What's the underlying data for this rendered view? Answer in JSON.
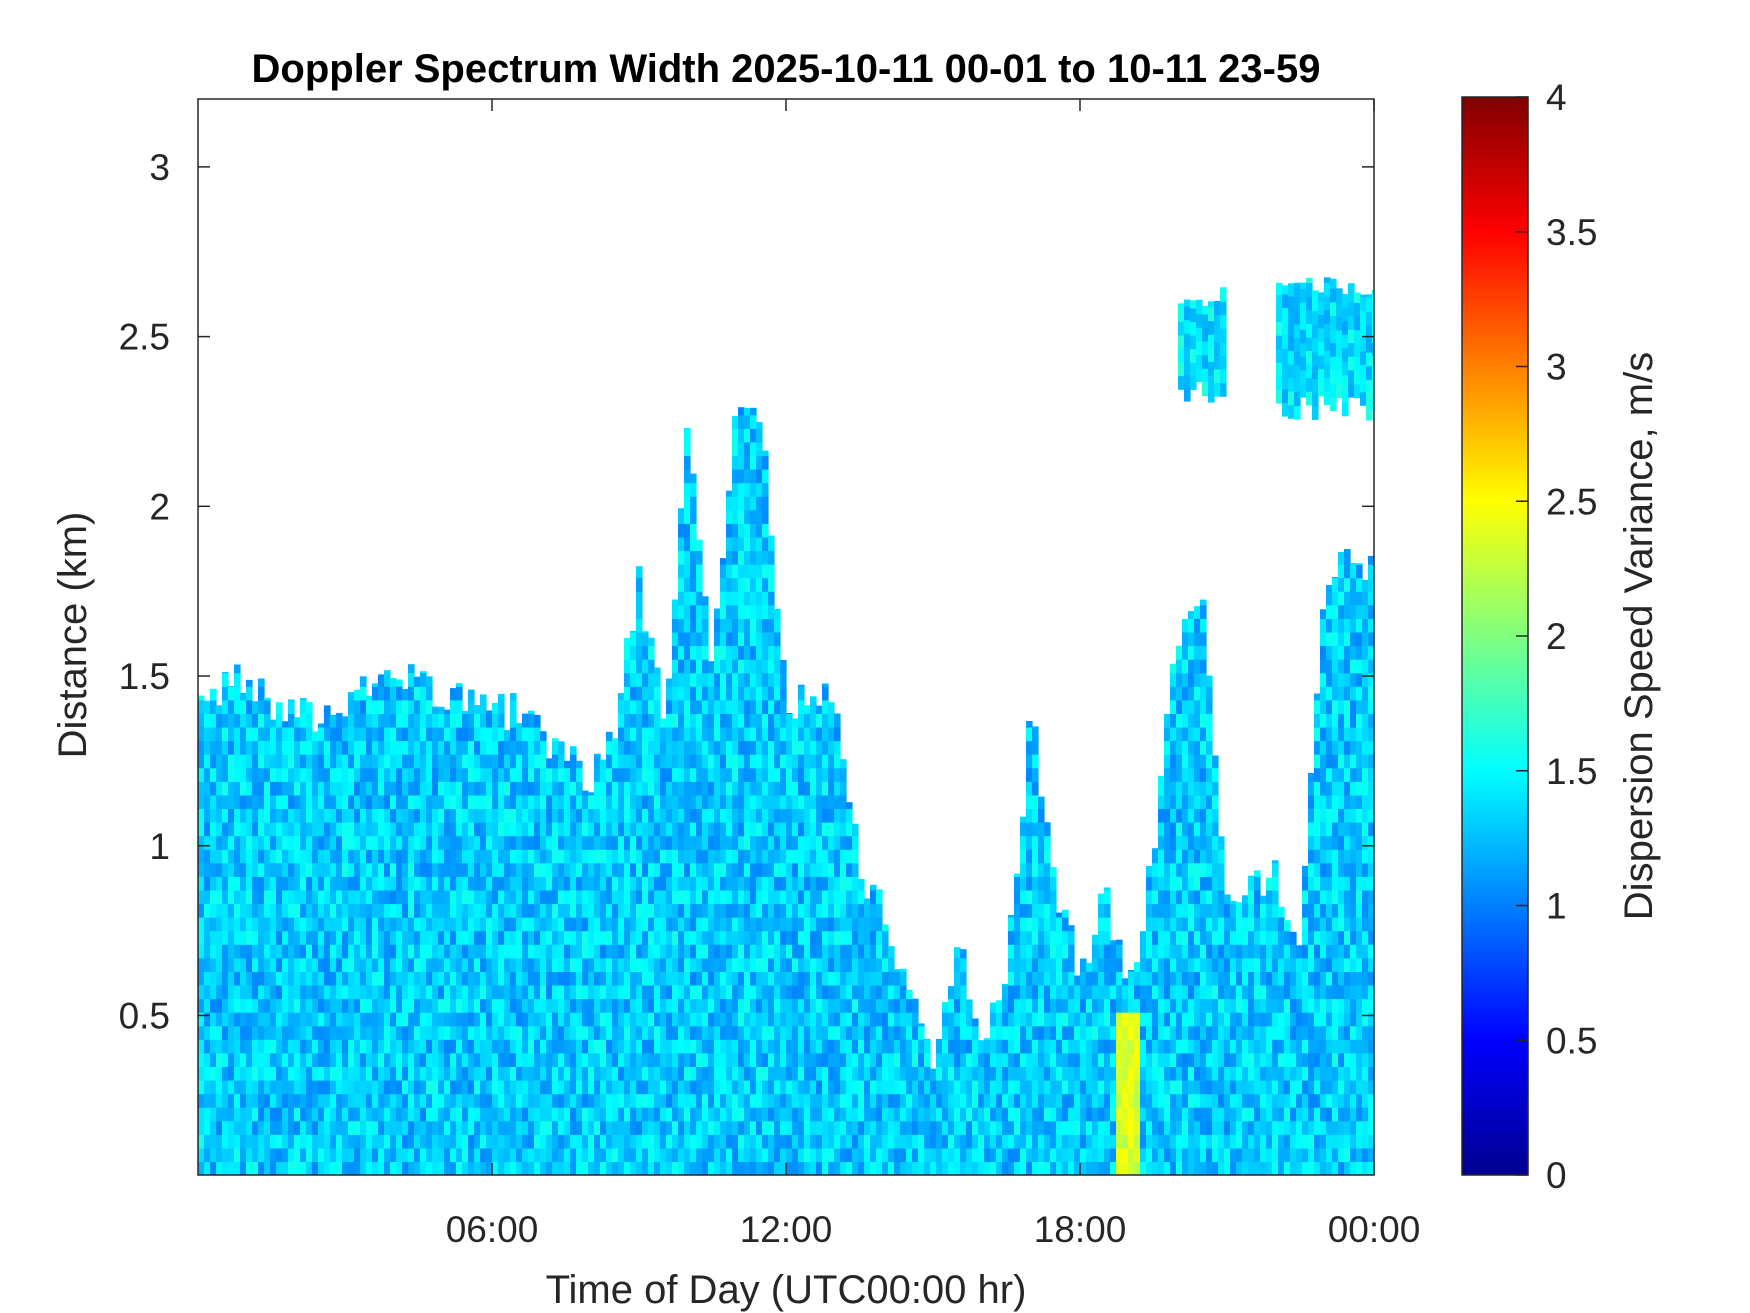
{
  "chart_data": {
    "type": "heatmap",
    "title": "Doppler Spectrum Width 2025-10-11 00-01 to 10-11 23-59",
    "xlabel": "Time of Day (UTC00:00 hr)",
    "ylabel": "Distance (km)",
    "colorbar_label": "Dispersion Speed Variance, m/s",
    "x_ticks": [
      "06:00",
      "12:00",
      "18:00",
      "00:00"
    ],
    "x_tick_hours": [
      6,
      12,
      18,
      24
    ],
    "xlim_hours": [
      0,
      24
    ],
    "y_ticks": [
      "0.5",
      "1",
      "1.5",
      "2",
      "2.5",
      "3"
    ],
    "y_tick_values": [
      0.5,
      1,
      1.5,
      2,
      2.5,
      3
    ],
    "ylim": [
      0.03,
      3.2
    ],
    "colorbar_ticks": [
      "0",
      "0.5",
      "1",
      "1.5",
      "2",
      "2.5",
      "3",
      "3.5",
      "4"
    ],
    "colorbar_tick_values": [
      0,
      0.5,
      1,
      1.5,
      2,
      2.5,
      3,
      3.5,
      4
    ],
    "clim": [
      0,
      4
    ],
    "colormap": "jet",
    "grid": false,
    "echo_top_km": [
      {
        "hour": 0.0,
        "top": 1.42
      },
      {
        "hour": 0.5,
        "top": 1.45
      },
      {
        "hour": 1.0,
        "top": 1.5
      },
      {
        "hour": 1.5,
        "top": 1.4
      },
      {
        "hour": 2.0,
        "top": 1.38
      },
      {
        "hour": 3.0,
        "top": 1.42
      },
      {
        "hour": 3.5,
        "top": 1.5
      },
      {
        "hour": 4.0,
        "top": 1.52
      },
      {
        "hour": 5.0,
        "top": 1.45
      },
      {
        "hour": 6.0,
        "top": 1.42
      },
      {
        "hour": 7.0,
        "top": 1.35
      },
      {
        "hour": 7.5,
        "top": 1.25
      },
      {
        "hour": 8.0,
        "top": 1.2
      },
      {
        "hour": 8.5,
        "top": 1.3
      },
      {
        "hour": 9.0,
        "top": 1.8
      },
      {
        "hour": 9.5,
        "top": 1.35
      },
      {
        "hour": 10.0,
        "top": 2.25
      },
      {
        "hour": 10.5,
        "top": 1.5
      },
      {
        "hour": 11.0,
        "top": 2.28
      },
      {
        "hour": 11.5,
        "top": 2.3
      },
      {
        "hour": 12.0,
        "top": 1.4
      },
      {
        "hour": 13.0,
        "top": 1.45
      },
      {
        "hour": 13.5,
        "top": 0.95
      },
      {
        "hour": 14.0,
        "top": 0.8
      },
      {
        "hour": 14.5,
        "top": 0.6
      },
      {
        "hour": 15.0,
        "top": 0.3
      },
      {
        "hour": 15.5,
        "top": 0.7
      },
      {
        "hour": 16.0,
        "top": 0.45
      },
      {
        "hour": 16.5,
        "top": 0.6
      },
      {
        "hour": 17.0,
        "top": 1.4
      },
      {
        "hour": 17.5,
        "top": 0.9
      },
      {
        "hour": 18.0,
        "top": 0.6
      },
      {
        "hour": 18.5,
        "top": 0.9
      },
      {
        "hour": 19.0,
        "top": 0.55
      },
      {
        "hour": 19.5,
        "top": 1.0
      },
      {
        "hour": 20.0,
        "top": 1.6
      },
      {
        "hour": 20.5,
        "top": 1.8
      },
      {
        "hour": 21.0,
        "top": 0.85
      },
      {
        "hour": 22.0,
        "top": 0.9
      },
      {
        "hour": 22.5,
        "top": 0.75
      },
      {
        "hour": 23.0,
        "top": 1.8
      },
      {
        "hour": 24.0,
        "top": 1.85
      }
    ],
    "upper_layers": [
      {
        "hour_start": 20.0,
        "hour_end": 20.9,
        "bottom_km": 2.3,
        "top_km": 2.65
      },
      {
        "hour_start": 22.0,
        "hour_end": 24.0,
        "bottom_km": 2.25,
        "top_km": 2.68
      }
    ],
    "typical_value": 1.3,
    "elevated_band": {
      "hour": 18.95,
      "value": 2.5,
      "top_km": 0.5
    }
  }
}
